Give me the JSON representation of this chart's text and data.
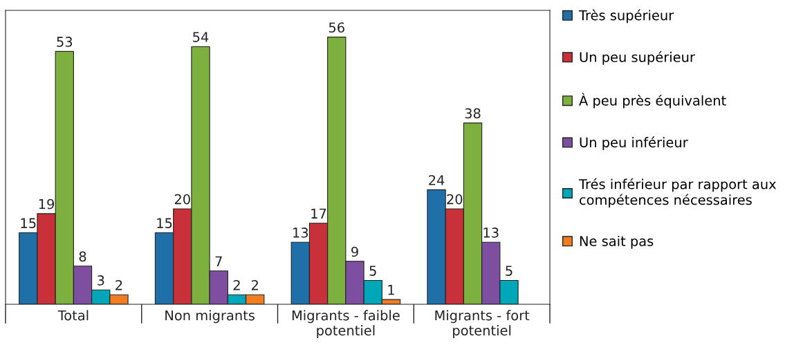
{
  "chart_data": {
    "type": "bar",
    "categories": [
      "Total",
      "Non migrants",
      "Migrants - faible\npotentiel",
      "Migrants - fort\npotentiel"
    ],
    "series": [
      {
        "name": "Très supérieur",
        "color": "#1f6fa8",
        "values": [
          15,
          15,
          13,
          24
        ]
      },
      {
        "name": "Un peu supérieur",
        "color": "#c8313a",
        "values": [
          19,
          20,
          17,
          20
        ]
      },
      {
        "name": "À peu près équivalent",
        "color": "#7db03f",
        "values": [
          53,
          54,
          56,
          38
        ]
      },
      {
        "name": "Un peu inférieur",
        "color": "#7e4fa1",
        "values": [
          8,
          7,
          9,
          13
        ]
      },
      {
        "name": "Trés inférieur par rapport aux\ncompétences nécessaires",
        "color": "#00a7b8",
        "values": [
          3,
          2,
          5,
          5
        ]
      },
      {
        "name": "Ne sait pas",
        "color": "#f07d22",
        "values": [
          2,
          2,
          1,
          null
        ]
      }
    ],
    "data_labels": true,
    "grid": false,
    "legend": "right"
  }
}
